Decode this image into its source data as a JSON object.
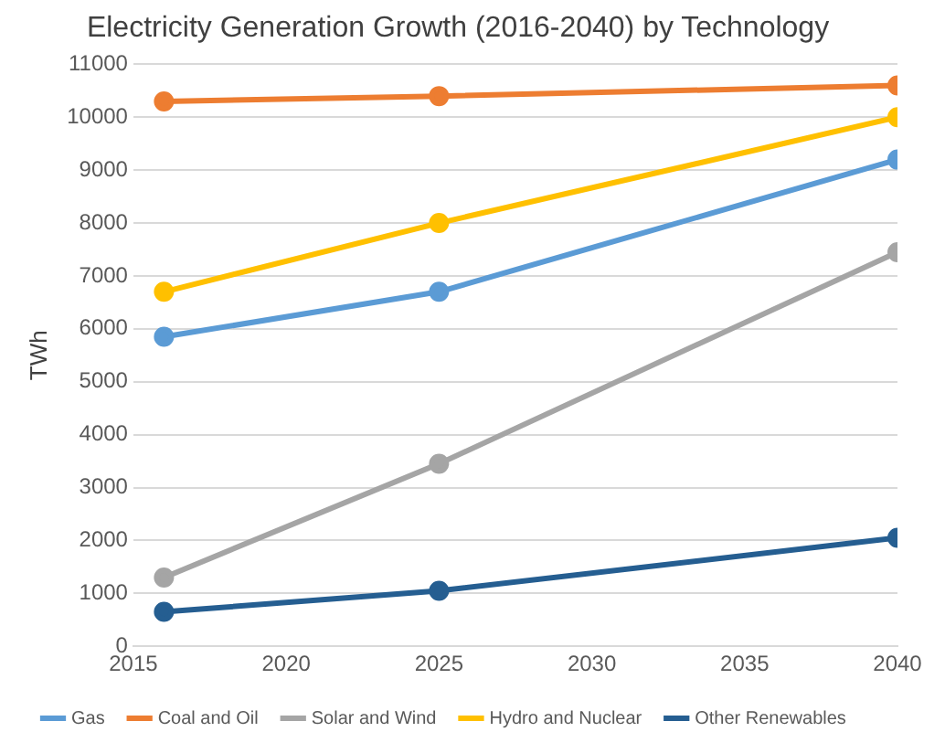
{
  "chart_data": {
    "type": "line",
    "title": "Electricity Generation Growth (2016-2040) by Technology",
    "ylabel": "TWh",
    "x": [
      2016,
      2025,
      2040
    ],
    "series": [
      {
        "name": "Gas",
        "color": "#5b9bd5",
        "values": [
          5850,
          6700,
          9200
        ]
      },
      {
        "name": "Coal and Oil",
        "color": "#ed7d31",
        "values": [
          10300,
          10400,
          10600
        ]
      },
      {
        "name": "Solar and Wind",
        "color": "#a5a5a5",
        "values": [
          1300,
          3450,
          7450
        ]
      },
      {
        "name": "Hydro and Nuclear",
        "color": "#ffc000",
        "values": [
          6700,
          8000,
          10000
        ]
      },
      {
        "name": "Other Renewables",
        "color": "#255e91",
        "values": [
          650,
          1050,
          2050
        ]
      }
    ],
    "xlim": [
      2015,
      2040
    ],
    "xticks": [
      2015,
      2020,
      2025,
      2030,
      2035,
      2040
    ],
    "ylim": [
      0,
      11000
    ],
    "yticks": [
      0,
      1000,
      2000,
      3000,
      4000,
      5000,
      6000,
      7000,
      8000,
      9000,
      10000,
      11000
    ],
    "grid": "y",
    "legend": "bottom",
    "marker": "circle",
    "line_style": "solid"
  }
}
